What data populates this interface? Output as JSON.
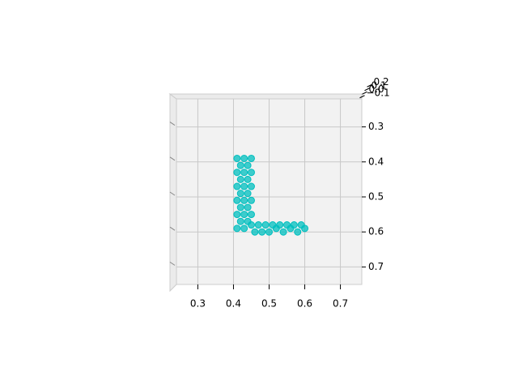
{
  "chart_data": {
    "type": "scatter",
    "x": [
      0.41,
      0.43,
      0.45,
      0.42,
      0.44,
      0.41,
      0.43,
      0.45,
      0.42,
      0.44,
      0.41,
      0.43,
      0.45,
      0.42,
      0.44,
      0.41,
      0.43,
      0.45,
      0.42,
      0.44,
      0.41,
      0.43,
      0.45,
      0.42,
      0.44,
      0.41,
      0.43,
      0.45,
      0.46,
      0.47,
      0.48,
      0.49,
      0.5,
      0.51,
      0.52,
      0.53,
      0.54,
      0.55,
      0.56,
      0.57,
      0.58,
      0.59,
      0.6
    ],
    "series": [
      {
        "color": "#00bfbf",
        "values": [
          0.39,
          0.39,
          0.39,
          0.41,
          0.41,
          0.43,
          0.43,
          0.43,
          0.45,
          0.45,
          0.47,
          0.47,
          0.47,
          0.49,
          0.49,
          0.51,
          0.51,
          0.51,
          0.53,
          0.53,
          0.55,
          0.55,
          0.55,
          0.57,
          0.57,
          0.59,
          0.59,
          0.58,
          0.6,
          0.58,
          0.6,
          0.58,
          0.6,
          0.58,
          0.59,
          0.58,
          0.6,
          0.58,
          0.59,
          0.58,
          0.6,
          0.58,
          0.59
        ]
      }
    ],
    "xlim": [
      0.24,
      0.76
    ],
    "xticks": [
      0.3,
      0.4,
      0.5,
      0.6,
      0.7
    ],
    "ylim": [
      0.22,
      0.75
    ],
    "yticks": [
      0.3,
      0.4,
      0.5,
      0.6,
      0.7
    ],
    "zlim": [
      -0.15,
      0.25
    ],
    "zticks": [
      {
        "value": -0.1,
        "label": "−0.1"
      },
      {
        "value": 0,
        "label": "0.0"
      },
      {
        "value": 0.1,
        "label": "0.1"
      },
      {
        "value": 0.2,
        "label": "0.2"
      }
    ],
    "grid": true
  }
}
